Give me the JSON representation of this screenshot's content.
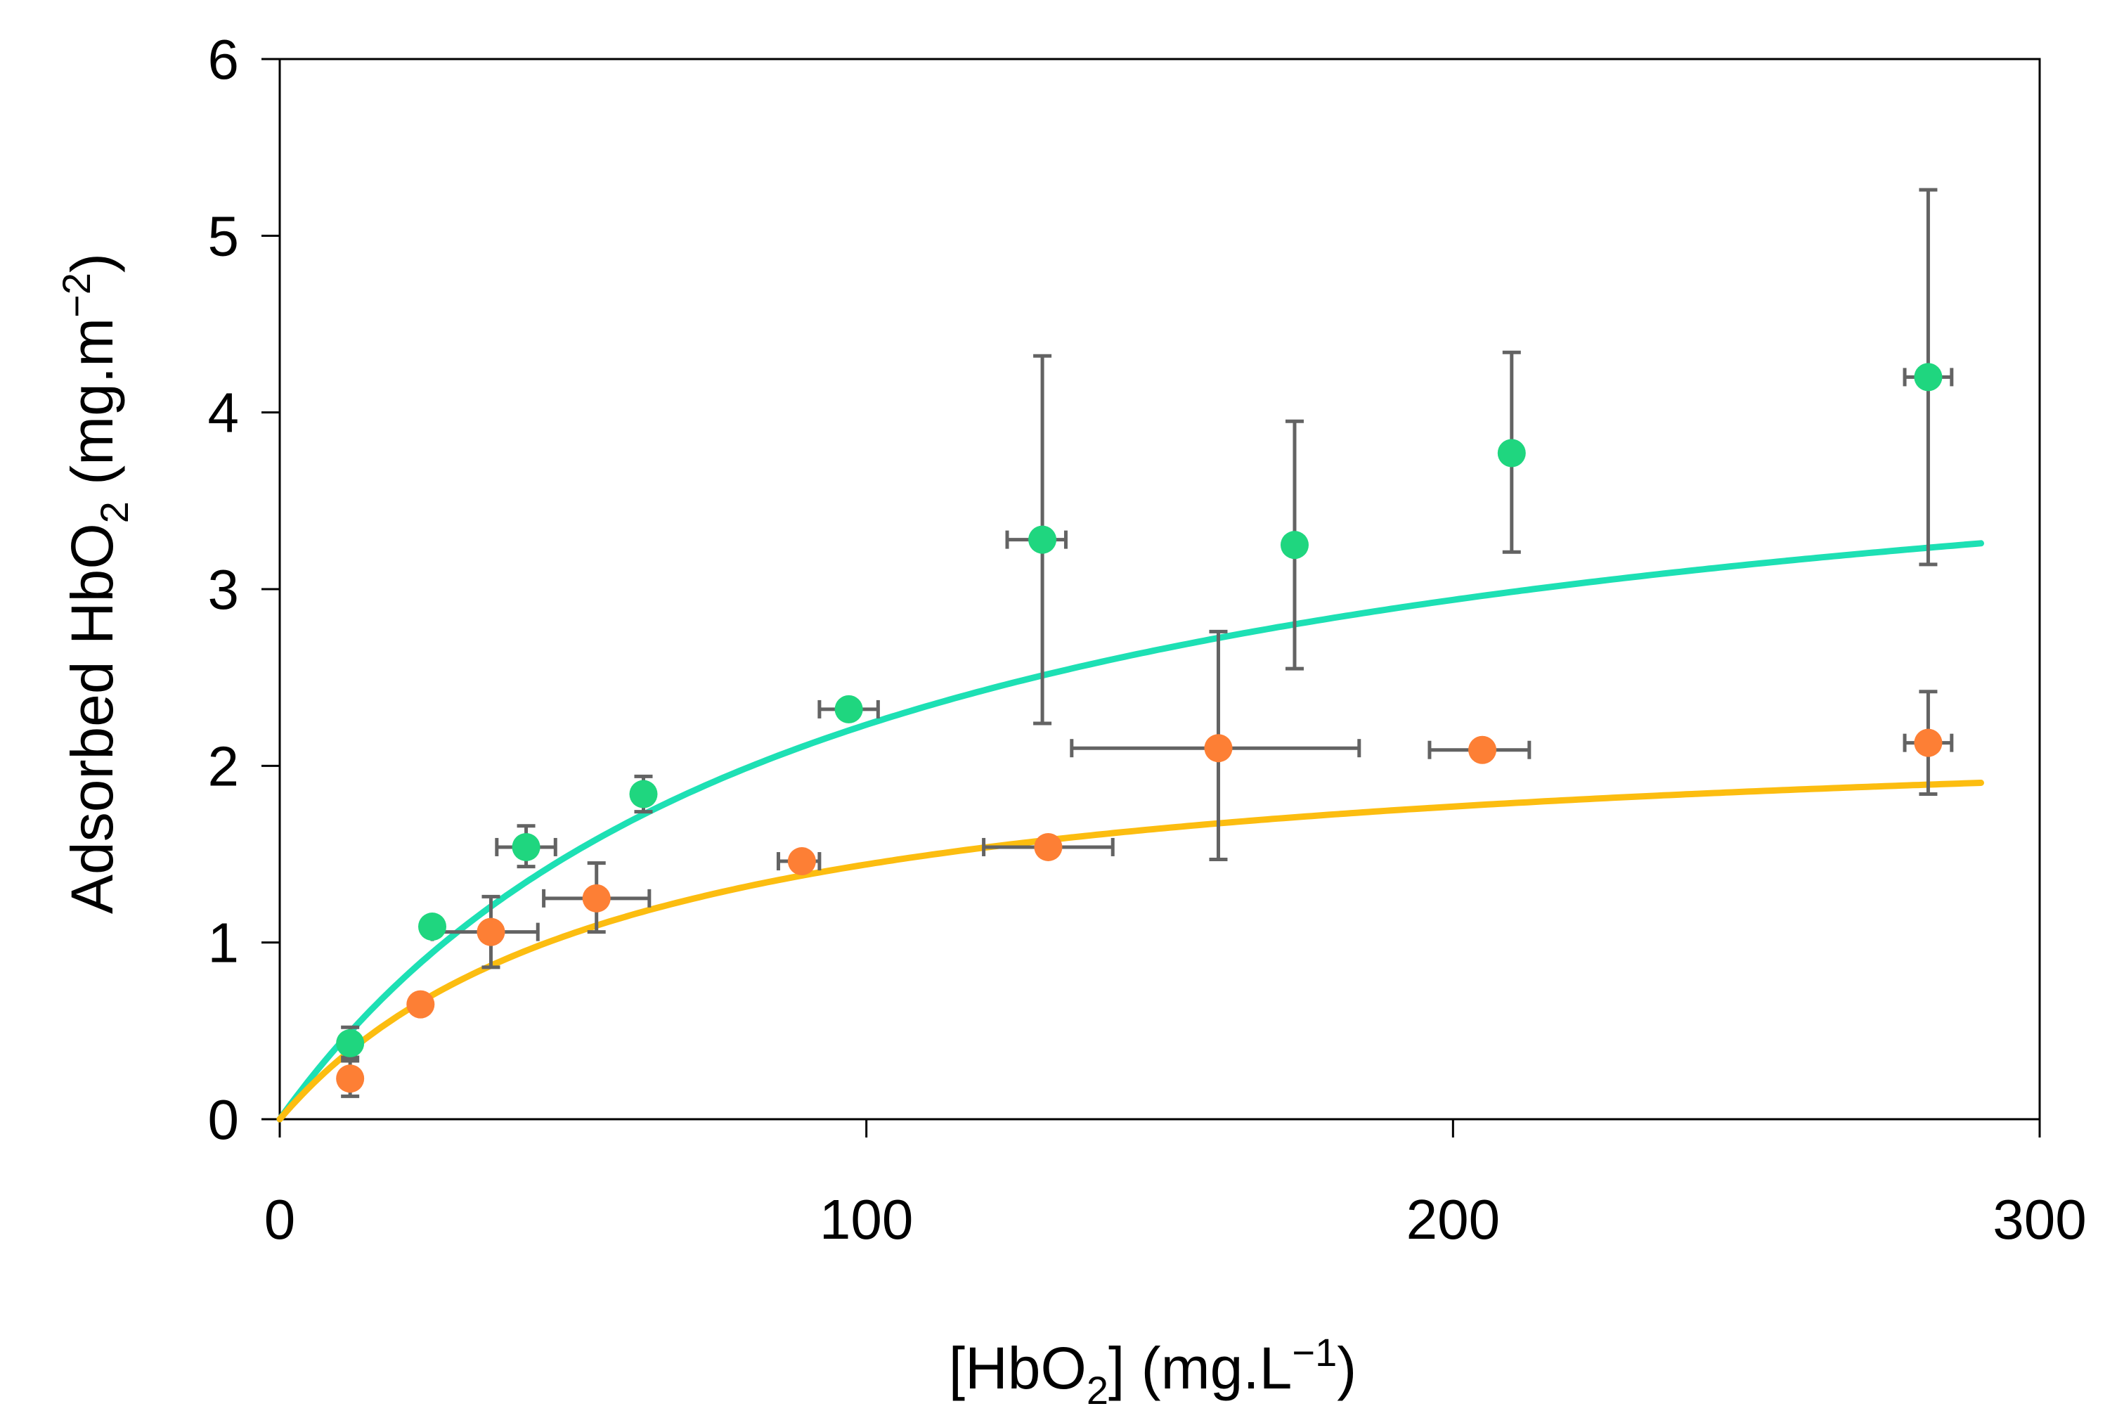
{
  "chart_data": {
    "type": "scatter",
    "title": "",
    "xlabel": {
      "open": "[",
      "base": "HbO",
      "sub": "2",
      "mid": "] (mg.L",
      "sup": "−1",
      "close": ")"
    },
    "ylabel": {
      "pre": "Adsorbed HbO",
      "sub": "2",
      "mid": " (mg.m",
      "sup": "−2",
      "close": ")"
    },
    "xlim": [
      0,
      300
    ],
    "ylim": [
      0,
      6
    ],
    "xticks": [
      0,
      100,
      200,
      300
    ],
    "yticks": [
      0,
      1,
      2,
      3,
      4,
      5,
      6
    ],
    "grid": false,
    "legend": false,
    "series": [
      {
        "name": "green",
        "marker_color": "#1fd67f",
        "points": [
          {
            "x": 12,
            "y": 0.43,
            "yerr": [
              0.35,
              0.52
            ],
            "xerr": null
          },
          {
            "x": 26,
            "y": 1.09,
            "yerr": [
              1.04,
              1.14
            ],
            "xerr": null
          },
          {
            "x": 42,
            "y": 1.54,
            "yerr": [
              1.43,
              1.66
            ],
            "xerr": [
              37,
              47
            ]
          },
          {
            "x": 62,
            "y": 1.84,
            "yerr": [
              1.74,
              1.94
            ],
            "xerr": null
          },
          {
            "x": 97,
            "y": 2.32,
            "yerr": [
              2.28,
              2.37
            ],
            "xerr": [
              92,
              102
            ]
          },
          {
            "x": 130,
            "y": 3.28,
            "yerr": [
              2.24,
              4.32
            ],
            "xerr": [
              124,
              134
            ]
          },
          {
            "x": 173,
            "y": 3.25,
            "yerr": [
              2.55,
              3.95
            ],
            "xerr": null
          },
          {
            "x": 210,
            "y": 3.77,
            "yerr": [
              3.21,
              4.34
            ],
            "xerr": null
          },
          {
            "x": 281,
            "y": 4.2,
            "yerr": [
              3.14,
              5.26
            ],
            "xerr": [
              277,
              285
            ]
          }
        ]
      },
      {
        "name": "orange",
        "marker_color": "#fd7f35",
        "points": [
          {
            "x": 12,
            "y": 0.23,
            "yerr": [
              0.13,
              0.33
            ],
            "xerr": null
          },
          {
            "x": 24,
            "y": 0.65,
            "yerr": null,
            "xerr": null
          },
          {
            "x": 36,
            "y": 1.06,
            "yerr": [
              0.86,
              1.26
            ],
            "xerr": [
              26,
              44
            ]
          },
          {
            "x": 54,
            "y": 1.25,
            "yerr": [
              1.06,
              1.45
            ],
            "xerr": [
              45,
              63
            ]
          },
          {
            "x": 89,
            "y": 1.46,
            "yerr": null,
            "xerr": [
              85,
              92
            ]
          },
          {
            "x": 131,
            "y": 1.54,
            "yerr": null,
            "xerr": [
              120,
              142
            ]
          },
          {
            "x": 160,
            "y": 2.1,
            "yerr": [
              1.47,
              2.76
            ],
            "xerr": [
              135,
              184
            ]
          },
          {
            "x": 205,
            "y": 2.09,
            "yerr": null,
            "xerr": [
              196,
              213
            ]
          },
          {
            "x": 281,
            "y": 2.13,
            "yerr": [
              1.84,
              2.42
            ],
            "xerr": [
              277,
              285
            ]
          }
        ]
      }
    ],
    "fit_curves": [
      {
        "name": "green-fit",
        "color": "#1de0b4",
        "qmax": 4.3,
        "k": 0.0108,
        "x_range": [
          0,
          290
        ]
      },
      {
        "name": "orange-fit",
        "color": "#fcbd10",
        "qmax": 2.29,
        "k": 0.017,
        "x_range": [
          0,
          290
        ]
      }
    ],
    "errorbar_color": "#636363"
  }
}
